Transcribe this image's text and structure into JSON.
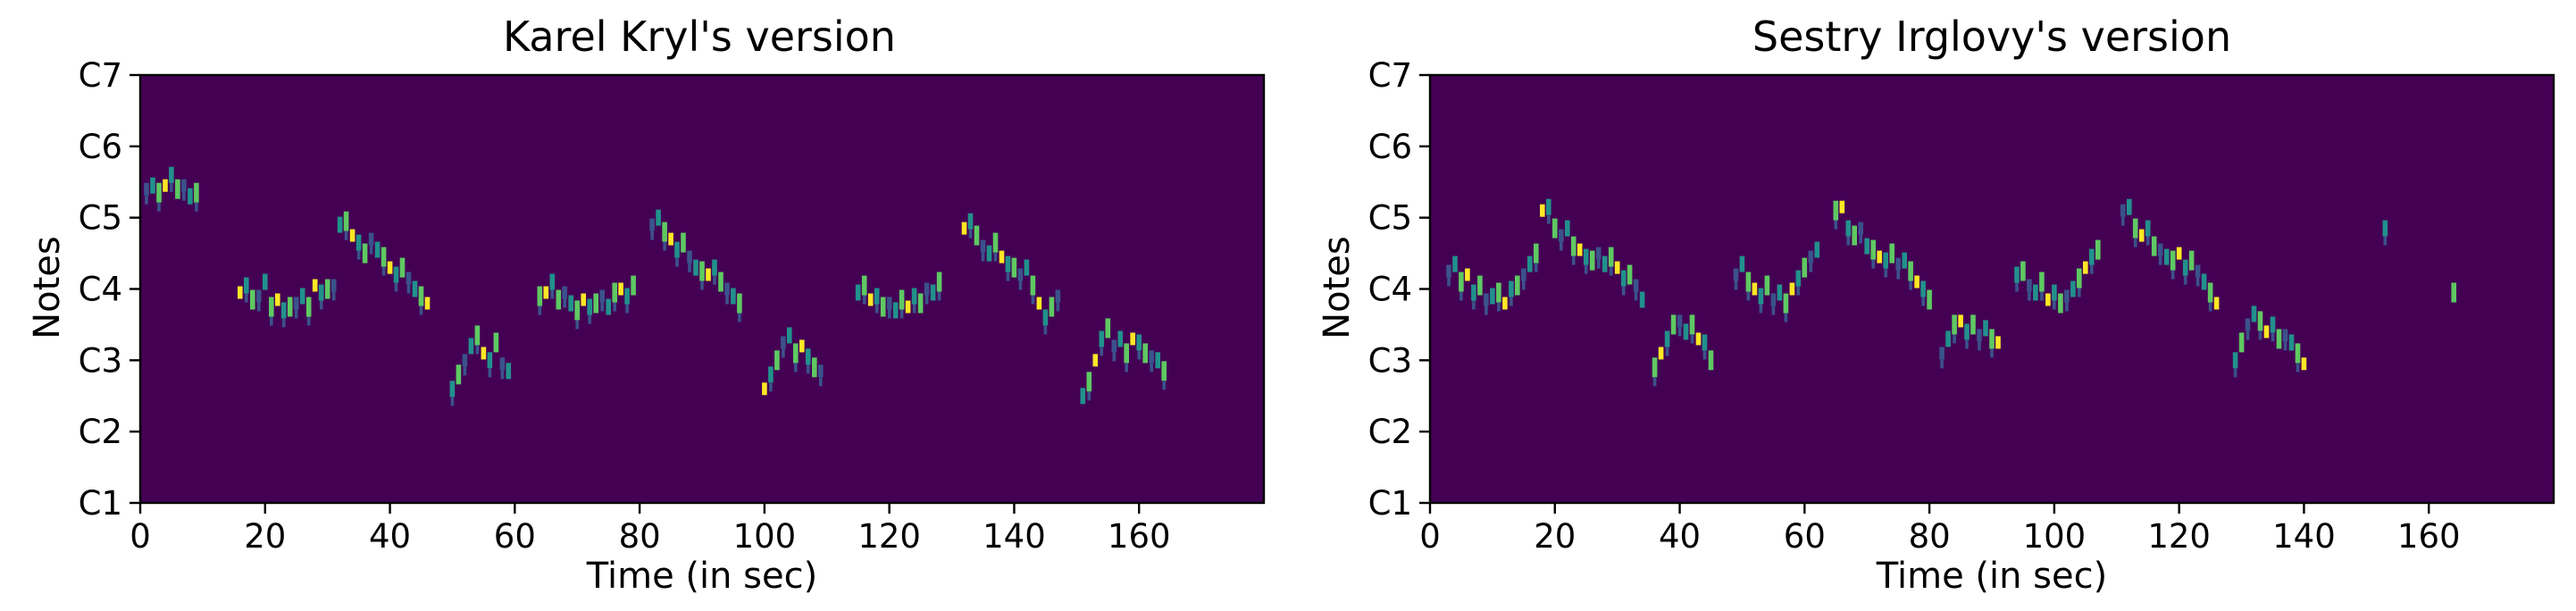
{
  "palette": {
    "background": "#440154",
    "low": "#3b528b",
    "mid": "#21918c",
    "high": "#5ec962",
    "peak": "#fde725"
  },
  "chart_data": [
    {
      "type": "heatmap",
      "title": "Karel Kryl's version",
      "xlabel": "Time (in sec)",
      "ylabel": "Notes",
      "xlim": [
        0,
        180
      ],
      "ylim": [
        0,
        6
      ],
      "xticks": [
        0,
        20,
        40,
        60,
        80,
        100,
        120,
        140,
        160
      ],
      "yticks": [
        {
          "value": 0,
          "label": "C1"
        },
        {
          "value": 1,
          "label": "C2"
        },
        {
          "value": 2,
          "label": "C3"
        },
        {
          "value": 3,
          "label": "C4"
        },
        {
          "value": 4,
          "label": "C5"
        },
        {
          "value": 5,
          "label": "C6"
        },
        {
          "value": 6,
          "label": "C7"
        }
      ],
      "melody": [
        [
          1,
          4.4
        ],
        [
          2,
          4.45
        ],
        [
          3,
          4.35
        ],
        [
          4,
          4.45
        ],
        [
          5,
          4.6
        ],
        [
          6,
          4.4
        ],
        [
          7,
          4.45
        ],
        [
          8,
          4.3
        ],
        [
          9,
          4.35
        ],
        [
          16,
          2.95
        ],
        [
          17,
          3.05
        ],
        [
          18,
          2.85
        ],
        [
          19,
          2.9
        ],
        [
          20,
          3.1
        ],
        [
          21,
          2.75
        ],
        [
          22,
          2.85
        ],
        [
          23,
          2.7
        ],
        [
          24,
          2.75
        ],
        [
          25,
          2.8
        ],
        [
          26,
          2.9
        ],
        [
          27,
          2.75
        ],
        [
          28,
          3.05
        ],
        [
          29,
          2.95
        ],
        [
          30,
          3.0
        ],
        [
          31,
          3.05
        ],
        [
          32,
          3.9
        ],
        [
          33,
          3.95
        ],
        [
          34,
          3.75
        ],
        [
          35,
          3.65
        ],
        [
          36,
          3.5
        ],
        [
          37,
          3.7
        ],
        [
          38,
          3.55
        ],
        [
          39,
          3.45
        ],
        [
          40,
          3.3
        ],
        [
          41,
          3.2
        ],
        [
          42,
          3.3
        ],
        [
          43,
          3.15
        ],
        [
          44,
          3.0
        ],
        [
          45,
          2.9
        ],
        [
          46,
          2.8
        ],
        [
          50,
          1.6
        ],
        [
          51,
          1.8
        ],
        [
          52,
          2.0
        ],
        [
          53,
          2.2
        ],
        [
          54,
          2.35
        ],
        [
          55,
          2.1
        ],
        [
          56,
          2.0
        ],
        [
          57,
          2.25
        ],
        [
          58,
          1.95
        ],
        [
          59,
          1.85
        ],
        [
          64,
          2.9
        ],
        [
          65,
          2.95
        ],
        [
          66,
          3.1
        ],
        [
          67,
          2.85
        ],
        [
          68,
          2.95
        ],
        [
          69,
          2.8
        ],
        [
          70,
          2.7
        ],
        [
          71,
          2.85
        ],
        [
          72,
          2.75
        ],
        [
          73,
          2.8
        ],
        [
          74,
          2.9
        ],
        [
          75,
          2.75
        ],
        [
          76,
          2.95
        ],
        [
          77,
          3.0
        ],
        [
          78,
          2.9
        ],
        [
          79,
          3.05
        ],
        [
          82,
          3.9
        ],
        [
          83,
          4.0
        ],
        [
          84,
          3.8
        ],
        [
          85,
          3.7
        ],
        [
          86,
          3.55
        ],
        [
          87,
          3.65
        ],
        [
          88,
          3.45
        ],
        [
          89,
          3.3
        ],
        [
          90,
          3.25
        ],
        [
          91,
          3.2
        ],
        [
          92,
          3.3
        ],
        [
          93,
          3.1
        ],
        [
          94,
          3.0
        ],
        [
          95,
          2.9
        ],
        [
          96,
          2.8
        ],
        [
          100,
          1.6
        ],
        [
          101,
          1.8
        ],
        [
          102,
          2.0
        ],
        [
          103,
          2.25
        ],
        [
          104,
          2.35
        ],
        [
          105,
          2.1
        ],
        [
          106,
          2.2
        ],
        [
          107,
          2.05
        ],
        [
          108,
          1.9
        ],
        [
          109,
          1.85
        ],
        [
          115,
          2.95
        ],
        [
          116,
          3.05
        ],
        [
          117,
          2.85
        ],
        [
          118,
          2.9
        ],
        [
          119,
          2.75
        ],
        [
          120,
          2.8
        ],
        [
          121,
          2.7
        ],
        [
          122,
          2.85
        ],
        [
          123,
          2.75
        ],
        [
          124,
          2.9
        ],
        [
          125,
          2.8
        ],
        [
          126,
          3.0
        ],
        [
          127,
          2.95
        ],
        [
          128,
          3.1
        ],
        [
          132,
          3.85
        ],
        [
          133,
          3.95
        ],
        [
          134,
          3.75
        ],
        [
          135,
          3.6
        ],
        [
          136,
          3.5
        ],
        [
          137,
          3.65
        ],
        [
          138,
          3.45
        ],
        [
          139,
          3.35
        ],
        [
          140,
          3.3
        ],
        [
          141,
          3.2
        ],
        [
          142,
          3.3
        ],
        [
          143,
          3.05
        ],
        [
          144,
          2.8
        ],
        [
          145,
          2.6
        ],
        [
          146,
          2.75
        ],
        [
          147,
          2.9
        ],
        [
          151,
          1.5
        ],
        [
          152,
          1.7
        ],
        [
          153,
          2.0
        ],
        [
          154,
          2.3
        ],
        [
          155,
          2.45
        ],
        [
          156,
          2.2
        ],
        [
          157,
          2.3
        ],
        [
          158,
          2.1
        ],
        [
          159,
          2.3
        ],
        [
          160,
          2.25
        ],
        [
          161,
          2.1
        ],
        [
          162,
          2.05
        ],
        [
          163,
          2.0
        ],
        [
          164,
          1.85
        ]
      ]
    },
    {
      "type": "heatmap",
      "title": "Sestry Irglovy's version",
      "xlabel": "Time (in sec)",
      "ylabel": "Notes",
      "xlim": [
        0,
        180
      ],
      "ylim": [
        0,
        6
      ],
      "xticks": [
        0,
        20,
        40,
        60,
        80,
        100,
        120,
        140,
        160
      ],
      "yticks": [
        {
          "value": 0,
          "label": "C1"
        },
        {
          "value": 1,
          "label": "C2"
        },
        {
          "value": 2,
          "label": "C3"
        },
        {
          "value": 3,
          "label": "C4"
        },
        {
          "value": 4,
          "label": "C5"
        },
        {
          "value": 5,
          "label": "C6"
        },
        {
          "value": 6,
          "label": "C7"
        }
      ],
      "melody": [
        [
          3,
          3.25
        ],
        [
          4,
          3.35
        ],
        [
          5,
          3.1
        ],
        [
          6,
          3.2
        ],
        [
          7,
          2.95
        ],
        [
          8,
          3.05
        ],
        [
          9,
          2.85
        ],
        [
          10,
          2.9
        ],
        [
          11,
          2.95
        ],
        [
          12,
          2.8
        ],
        [
          13,
          3.0
        ],
        [
          14,
          3.05
        ],
        [
          15,
          3.2
        ],
        [
          16,
          3.35
        ],
        [
          17,
          3.5
        ],
        [
          18,
          4.1
        ],
        [
          19,
          4.15
        ],
        [
          20,
          3.85
        ],
        [
          21,
          3.75
        ],
        [
          22,
          3.85
        ],
        [
          23,
          3.6
        ],
        [
          24,
          3.55
        ],
        [
          25,
          3.45
        ],
        [
          26,
          3.4
        ],
        [
          27,
          3.5
        ],
        [
          28,
          3.35
        ],
        [
          29,
          3.45
        ],
        [
          30,
          3.3
        ],
        [
          31,
          3.15
        ],
        [
          32,
          3.2
        ],
        [
          33,
          3.05
        ],
        [
          34,
          2.85
        ],
        [
          36,
          1.9
        ],
        [
          37,
          2.1
        ],
        [
          38,
          2.3
        ],
        [
          39,
          2.5
        ],
        [
          40,
          2.55
        ],
        [
          41,
          2.4
        ],
        [
          42,
          2.5
        ],
        [
          43,
          2.3
        ],
        [
          44,
          2.25
        ],
        [
          45,
          2.0
        ],
        [
          49,
          3.2
        ],
        [
          50,
          3.35
        ],
        [
          51,
          3.1
        ],
        [
          52,
          3.0
        ],
        [
          53,
          2.9
        ],
        [
          54,
          3.05
        ],
        [
          55,
          2.85
        ],
        [
          56,
          2.95
        ],
        [
          57,
          2.8
        ],
        [
          58,
          3.0
        ],
        [
          59,
          3.15
        ],
        [
          60,
          3.3
        ],
        [
          61,
          3.45
        ],
        [
          62,
          3.55
        ],
        [
          65,
          4.1
        ],
        [
          66,
          4.15
        ],
        [
          67,
          3.85
        ],
        [
          68,
          3.75
        ],
        [
          69,
          3.85
        ],
        [
          70,
          3.6
        ],
        [
          71,
          3.55
        ],
        [
          72,
          3.45
        ],
        [
          73,
          3.4
        ],
        [
          74,
          3.5
        ],
        [
          75,
          3.35
        ],
        [
          76,
          3.4
        ],
        [
          77,
          3.25
        ],
        [
          78,
          3.1
        ],
        [
          79,
          3.0
        ],
        [
          80,
          2.85
        ],
        [
          82,
          2.1
        ],
        [
          83,
          2.3
        ],
        [
          84,
          2.5
        ],
        [
          85,
          2.55
        ],
        [
          86,
          2.4
        ],
        [
          87,
          2.5
        ],
        [
          88,
          2.35
        ],
        [
          89,
          2.45
        ],
        [
          90,
          2.3
        ],
        [
          91,
          2.25
        ],
        [
          94,
          3.2
        ],
        [
          95,
          3.25
        ],
        [
          96,
          3.05
        ],
        [
          97,
          2.95
        ],
        [
          98,
          3.1
        ],
        [
          99,
          2.85
        ],
        [
          100,
          2.95
        ],
        [
          101,
          2.8
        ],
        [
          102,
          2.9
        ],
        [
          103,
          3.0
        ],
        [
          104,
          3.15
        ],
        [
          105,
          3.3
        ],
        [
          106,
          3.45
        ],
        [
          107,
          3.55
        ],
        [
          111,
          4.1
        ],
        [
          112,
          4.15
        ],
        [
          113,
          3.85
        ],
        [
          114,
          3.75
        ],
        [
          115,
          3.85
        ],
        [
          116,
          3.6
        ],
        [
          117,
          3.55
        ],
        [
          118,
          3.45
        ],
        [
          119,
          3.4
        ],
        [
          120,
          3.5
        ],
        [
          121,
          3.3
        ],
        [
          122,
          3.4
        ],
        [
          123,
          3.25
        ],
        [
          124,
          3.1
        ],
        [
          125,
          2.95
        ],
        [
          126,
          2.8
        ],
        [
          129,
          2.0
        ],
        [
          130,
          2.25
        ],
        [
          131,
          2.5
        ],
        [
          132,
          2.65
        ],
        [
          133,
          2.55
        ],
        [
          134,
          2.4
        ],
        [
          135,
          2.5
        ],
        [
          136,
          2.3
        ],
        [
          137,
          2.35
        ],
        [
          138,
          2.25
        ],
        [
          139,
          2.1
        ],
        [
          140,
          1.95
        ],
        [
          153,
          3.85
        ],
        [
          164,
          2.95
        ]
      ]
    }
  ]
}
